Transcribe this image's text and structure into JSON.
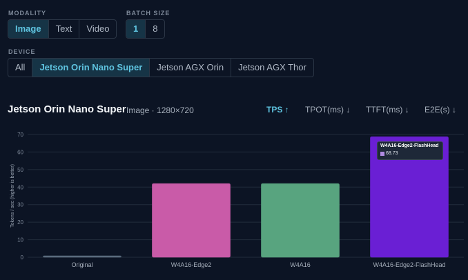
{
  "filters": {
    "modality": {
      "label": "MODALITY",
      "options": [
        "Image",
        "Text",
        "Video"
      ],
      "selected": "Image"
    },
    "batch_size": {
      "label": "BATCH SIZE",
      "options": [
        "1",
        "8"
      ],
      "selected": "1"
    },
    "device": {
      "label": "DEVICE",
      "options": [
        "All",
        "Jetson Orin Nano Super",
        "Jetson AGX Orin",
        "Jetson AGX Thor"
      ],
      "selected": "Jetson Orin Nano Super"
    }
  },
  "chart_header": {
    "title": "Jetson Orin Nano Super",
    "subtitle": "Image · 1280×720",
    "metrics": [
      "TPS ↑",
      "TPOT(ms) ↓",
      "TTFT(ms) ↓",
      "E2E(s) ↓"
    ],
    "active_metric": "TPS ↑"
  },
  "tooltip": {
    "title": "W4A16-Edge2-FlashHead",
    "value": "68.73",
    "color": "#b08be0"
  },
  "chart_data": {
    "type": "bar",
    "categories": [
      "Original",
      "W4A16-Edge2",
      "W4A16",
      "W4A16-Edge2-FlashHead"
    ],
    "values": [
      0.8,
      42,
      42,
      68.73
    ],
    "colors": [
      "#5a6b7d",
      "#c95ba8",
      "#58a47f",
      "#6a1fd4"
    ],
    "ylabel": "Tokens / sec (higher is better)",
    "ylim": [
      0,
      70
    ],
    "yticks": [
      0,
      10,
      20,
      30,
      40,
      50,
      60,
      70
    ],
    "grid": true
  }
}
